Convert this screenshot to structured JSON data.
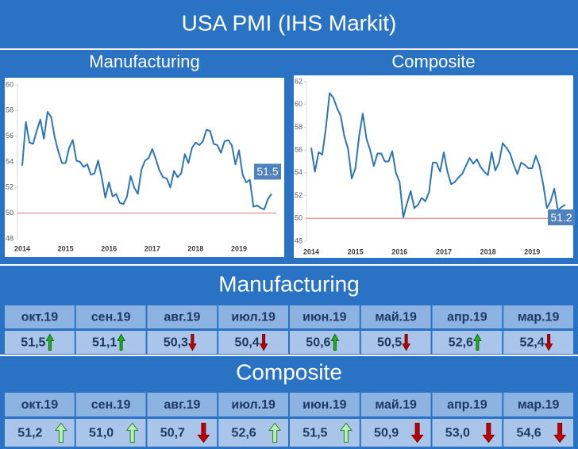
{
  "header": {
    "title": "USA PMI (IHS Markit)"
  },
  "chart_data": [
    {
      "type": "line",
      "title": "Manufacturing",
      "color": "#2e75b6",
      "categories": [
        "2014",
        null,
        null,
        null,
        null,
        null,
        null,
        null,
        null,
        null,
        null,
        null,
        "2015",
        null,
        null,
        null,
        null,
        null,
        null,
        null,
        null,
        null,
        null,
        null,
        "2016",
        null,
        null,
        null,
        null,
        null,
        null,
        null,
        null,
        null,
        null,
        null,
        "2017",
        null,
        null,
        null,
        null,
        null,
        null,
        null,
        null,
        null,
        null,
        null,
        "2018",
        null,
        null,
        null,
        null,
        null,
        null,
        null,
        null,
        null,
        null,
        null,
        "2019",
        null,
        null,
        null,
        null,
        null,
        null,
        null,
        null,
        null
      ],
      "values": [
        53.7,
        57.1,
        55.5,
        55.4,
        56.4,
        57.3,
        55.8,
        57.9,
        57.5,
        55.9,
        54.8,
        53.9,
        53.9,
        55.1,
        55.7,
        54.1,
        54.0,
        53.6,
        53.8,
        53.0,
        53.1,
        54.1,
        52.8,
        51.2,
        52.4,
        51.3,
        51.5,
        50.8,
        50.7,
        51.3,
        52.9,
        52.0,
        51.5,
        53.4,
        54.1,
        54.3,
        55.0,
        54.2,
        53.3,
        52.8,
        52.7,
        52.0,
        53.3,
        52.8,
        53.1,
        54.6,
        53.9,
        55.1,
        55.5,
        55.3,
        55.6,
        56.5,
        56.4,
        55.4,
        55.3,
        54.7,
        55.6,
        55.7,
        55.3,
        53.8,
        54.9,
        53.0,
        52.4,
        52.6,
        50.5,
        50.6,
        50.4,
        50.3,
        51.1,
        51.5
      ],
      "ylim": [
        48,
        60
      ],
      "yticks": [
        48,
        50,
        52,
        54,
        56,
        58,
        60
      ],
      "reference_line": 50,
      "reference_color": "#e57373",
      "label_last": true
    },
    {
      "type": "line",
      "title": "Composite",
      "color": "#2e75b6",
      "categories": [
        "2014",
        null,
        null,
        null,
        null,
        null,
        null,
        null,
        null,
        null,
        null,
        null,
        "2015",
        null,
        null,
        null,
        null,
        null,
        null,
        null,
        null,
        null,
        null,
        null,
        "2016",
        null,
        null,
        null,
        null,
        null,
        null,
        null,
        null,
        null,
        null,
        null,
        "2017",
        null,
        null,
        null,
        null,
        null,
        null,
        null,
        null,
        null,
        null,
        null,
        "2018",
        null,
        null,
        null,
        null,
        null,
        null,
        null,
        null,
        null,
        null,
        null,
        "2019",
        null,
        null,
        null,
        null,
        null,
        null,
        null,
        null,
        null
      ],
      "values": [
        56.2,
        54.1,
        55.8,
        55.6,
        58.0,
        61.0,
        60.6,
        59.7,
        59.0,
        57.2,
        56.1,
        53.5,
        54.4,
        57.2,
        59.2,
        57.0,
        56.0,
        54.6,
        55.7,
        55.7,
        55.0,
        55.0,
        55.9,
        54.0,
        53.2,
        50.1,
        51.3,
        52.4,
        50.9,
        51.2,
        51.8,
        51.5,
        52.3,
        54.9,
        54.9,
        54.1,
        55.8,
        54.1,
        53.0,
        53.2,
        53.6,
        53.9,
        54.6,
        55.3,
        54.8,
        55.2,
        54.5,
        54.1,
        53.8,
        55.8,
        54.2,
        54.9,
        56.6,
        56.2,
        55.7,
        54.7,
        53.9,
        54.9,
        54.7,
        54.4,
        54.4,
        55.5,
        54.6,
        53.0,
        50.9,
        51.5,
        52.6,
        50.7,
        51.0,
        51.2
      ],
      "ylim": [
        48,
        62
      ],
      "yticks": [
        48,
        50,
        52,
        54,
        56,
        58,
        60,
        62
      ],
      "reference_line": 50,
      "reference_color": "#e57373",
      "label_last": true
    }
  ],
  "tables": [
    {
      "title": "Manufacturing",
      "months": [
        "окт.19",
        "сен.19",
        "авг.19",
        "июл.19",
        "июн.19",
        "май.19",
        "апр.19",
        "мар.19"
      ],
      "values": [
        "51,5",
        "51,1",
        "50,3",
        "50,4",
        "50,6",
        "50,5",
        "52,6",
        "52,4"
      ],
      "trend": [
        "up",
        "up",
        "down",
        "down",
        "up",
        "down",
        "up",
        "down"
      ]
    },
    {
      "title": "Composite",
      "months": [
        "окт.19",
        "сен.19",
        "авг.19",
        "июл.19",
        "июн.19",
        "май.19",
        "апр.19",
        "мар.19"
      ],
      "values": [
        "51,2",
        "51,0",
        "50,7",
        "52,6",
        "51,5",
        "50,9",
        "53,0",
        "54,6"
      ],
      "trend": [
        "up",
        "up",
        "down",
        "up",
        "up",
        "down",
        "down",
        "down"
      ]
    }
  ]
}
